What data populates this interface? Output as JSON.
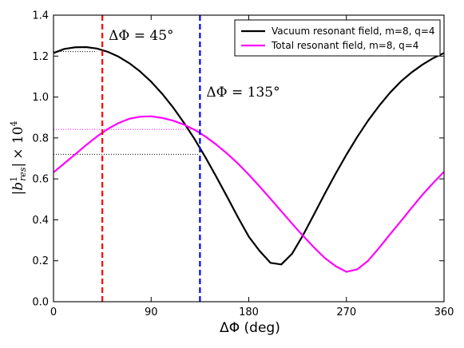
{
  "chart_data": {
    "type": "line",
    "xlabel": "ΔΦ (deg)",
    "ylabel": "|b¹res| × 10⁴",
    "xlim": [
      0,
      360
    ],
    "ylim": [
      0.0,
      1.4
    ],
    "xticks": [
      0,
      90,
      180,
      270,
      360
    ],
    "xtick_labels": [
      "0",
      "90",
      "180",
      "270",
      "360"
    ],
    "yticks": [
      0.0,
      0.2,
      0.4,
      0.6,
      0.8,
      1.0,
      1.2,
      1.4
    ],
    "ytick_labels": [
      "0.0",
      "0.2",
      "0.4",
      "0.6",
      "0.8",
      "1.0",
      "1.2",
      "1.4"
    ],
    "grid": false,
    "legend_position": "top-right",
    "series": [
      {
        "name": "Vacuum resonant field, m=8, q=4",
        "color": "#000000",
        "x": [
          0,
          10,
          20,
          30,
          40,
          50,
          60,
          70,
          80,
          90,
          100,
          110,
          120,
          130,
          140,
          150,
          160,
          170,
          180,
          190,
          200,
          210,
          220,
          230,
          240,
          250,
          260,
          270,
          280,
          290,
          300,
          310,
          320,
          330,
          340,
          350,
          360
        ],
        "y": [
          1.215,
          1.235,
          1.243,
          1.244,
          1.237,
          1.221,
          1.197,
          1.165,
          1.124,
          1.075,
          1.017,
          0.951,
          0.876,
          0.795,
          0.706,
          0.611,
          0.513,
          0.413,
          0.318,
          0.248,
          0.19,
          0.182,
          0.235,
          0.325,
          0.425,
          0.527,
          0.625,
          0.718,
          0.805,
          0.885,
          0.956,
          1.02,
          1.075,
          1.12,
          1.158,
          1.19,
          1.215
        ]
      },
      {
        "name": "Total resonant field, m=8, q=4",
        "color": "#ff00ff",
        "x": [
          0,
          10,
          20,
          30,
          40,
          50,
          60,
          70,
          80,
          90,
          100,
          110,
          120,
          130,
          140,
          150,
          160,
          170,
          180,
          190,
          200,
          210,
          220,
          230,
          240,
          250,
          260,
          270,
          280,
          290,
          300,
          310,
          320,
          330,
          340,
          350,
          360
        ],
        "y": [
          0.632,
          0.676,
          0.72,
          0.765,
          0.807,
          0.844,
          0.873,
          0.894,
          0.904,
          0.906,
          0.898,
          0.885,
          0.866,
          0.84,
          0.807,
          0.768,
          0.724,
          0.675,
          0.621,
          0.563,
          0.503,
          0.442,
          0.381,
          0.322,
          0.266,
          0.214,
          0.174,
          0.146,
          0.158,
          0.2,
          0.262,
          0.328,
          0.392,
          0.458,
          0.522,
          0.58,
          0.635
        ]
      }
    ],
    "vertical_markers": [
      {
        "x": 45,
        "label": "ΔΦ = 45°",
        "color": "#ff0000",
        "style": "dashed"
      },
      {
        "x": 135,
        "label": "ΔΦ = 135°",
        "color": "#0000ff",
        "style": "dashed"
      }
    ],
    "reference_lines": [
      {
        "y": 1.222,
        "x_range": [
          0,
          40
        ],
        "color": "#000000",
        "style": "dotted"
      },
      {
        "y": 0.842,
        "x_range": [
          0,
          135
        ],
        "color": "#ff00ff",
        "style": "dotted"
      },
      {
        "y": 0.72,
        "x_range": [
          0,
          135
        ],
        "color": "#000000",
        "style": "dotted"
      }
    ]
  }
}
